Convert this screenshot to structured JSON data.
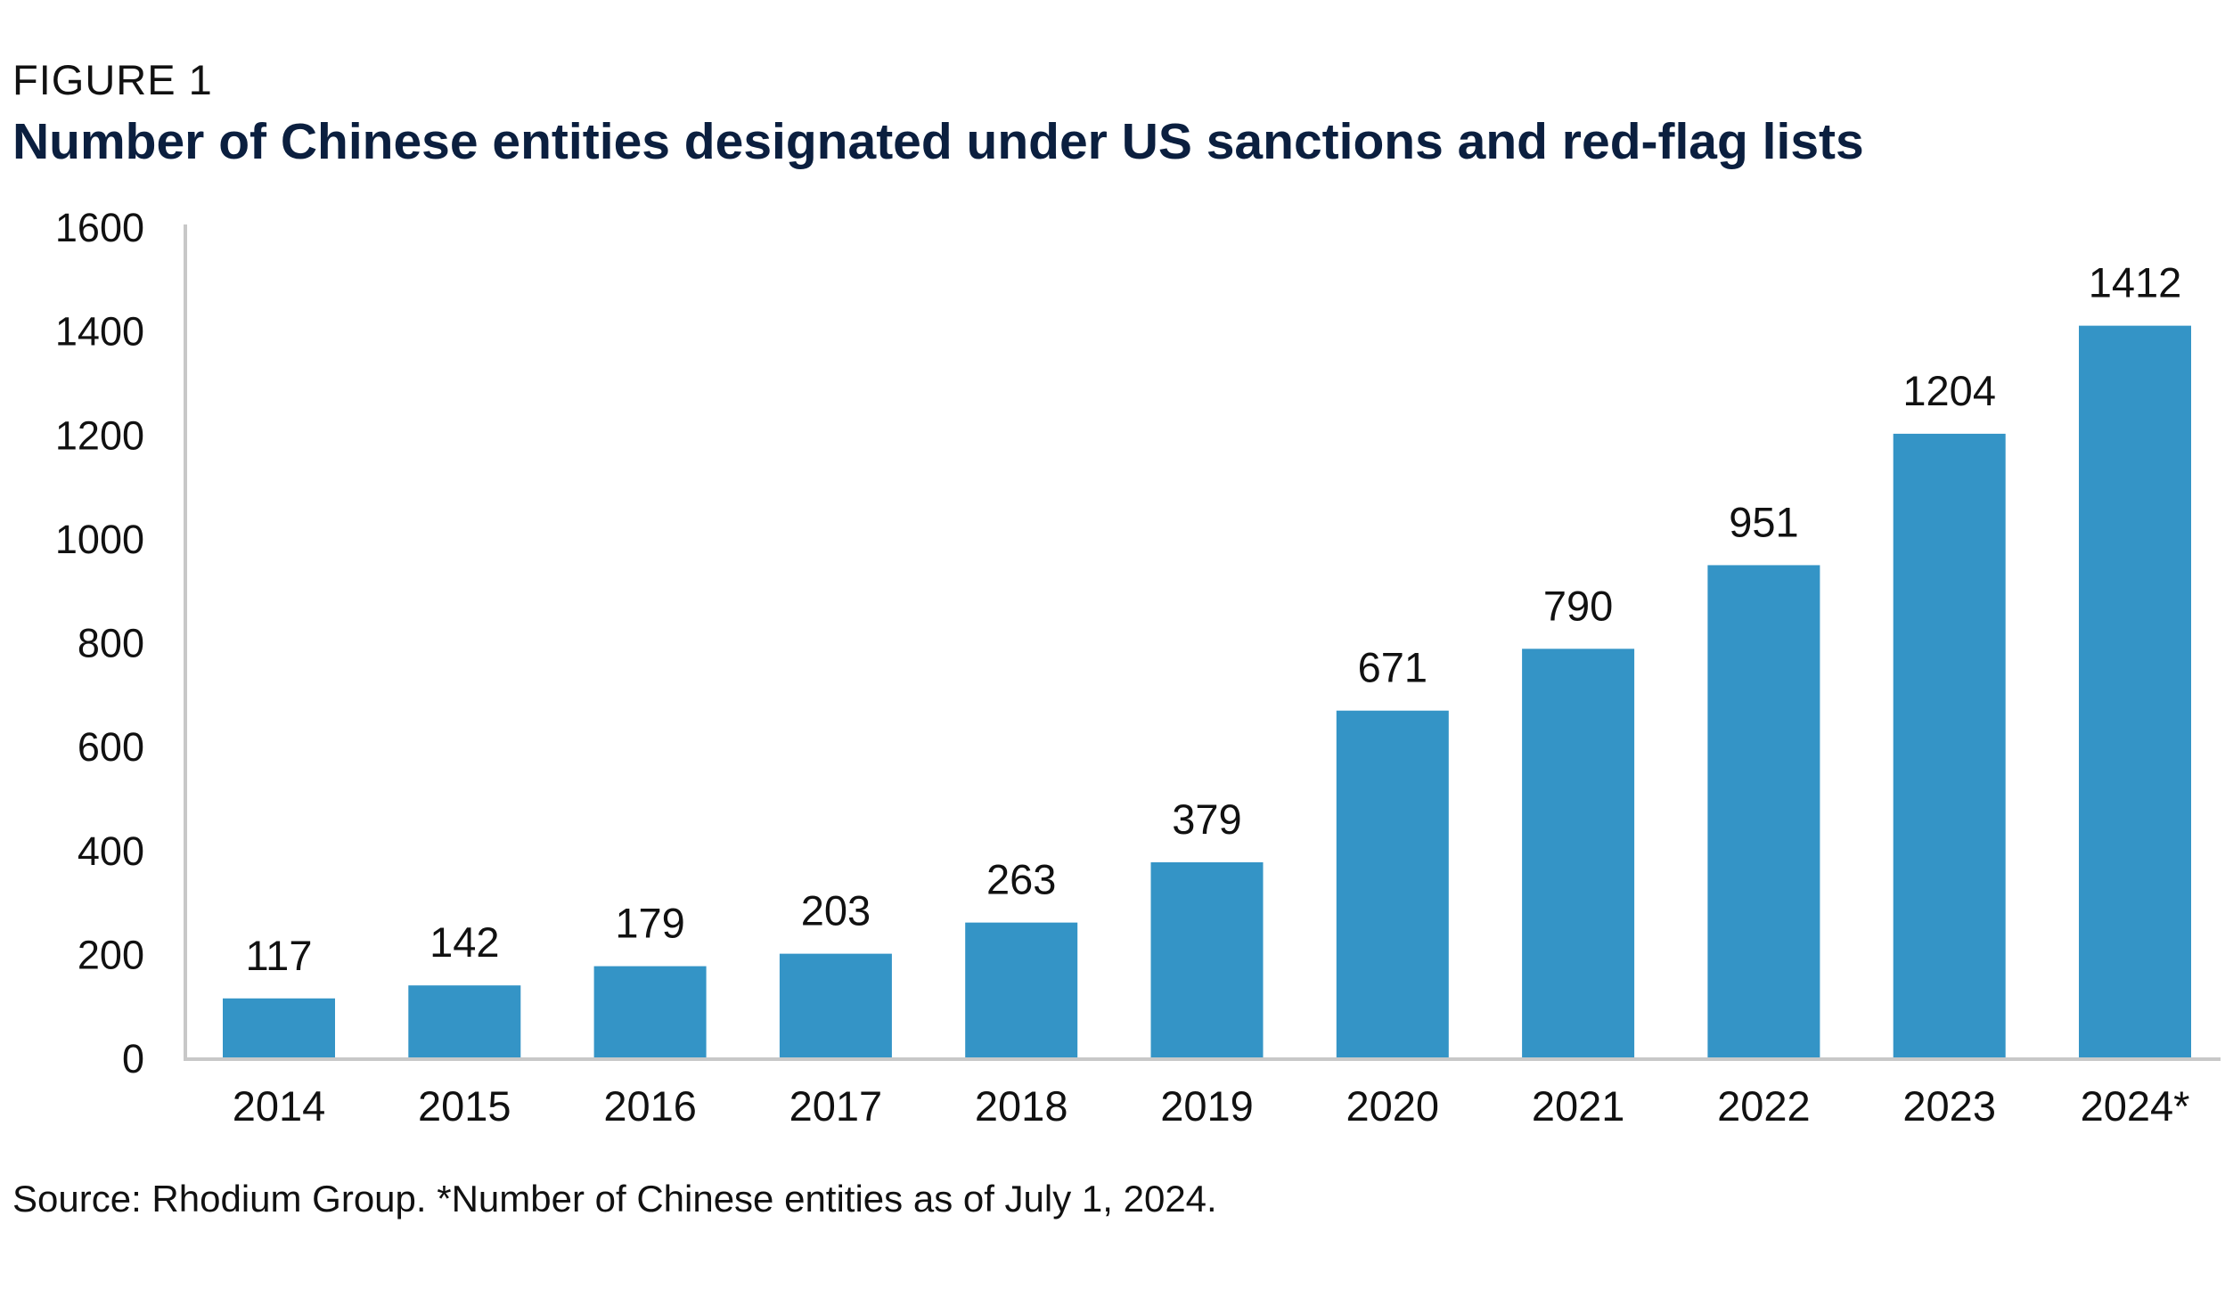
{
  "figure_label": "FIGURE 1",
  "title": "Number of Chinese entities designated under US sanctions and red-flag lists",
  "source": "Source: Rhodium Group. *Number of Chinese entities as of July 1, 2024.",
  "colors": {
    "bar": "#3494c6",
    "axis": "#c8c8c8",
    "text": "#111111",
    "title": "#0b1f3f"
  },
  "chart_data": {
    "type": "bar",
    "categories": [
      "2014",
      "2015",
      "2016",
      "2017",
      "2018",
      "2019",
      "2020",
      "2021",
      "2022",
      "2023",
      "2024*"
    ],
    "values": [
      117,
      142,
      179,
      203,
      263,
      379,
      671,
      790,
      951,
      1204,
      1412
    ],
    "data_labels": [
      "117",
      "142",
      "179",
      "203",
      "263",
      "379",
      "671",
      "790",
      "951",
      "1204",
      "1412"
    ],
    "title": "Number of Chinese entities designated under US sanctions and red-flag lists",
    "xlabel": "",
    "ylabel": "",
    "ylim": [
      0,
      1600
    ],
    "yticks": [
      0,
      200,
      400,
      600,
      800,
      1000,
      1200,
      1400,
      1600
    ],
    "ytick_labels": [
      "0",
      "200",
      "400",
      "600",
      "800",
      "1000",
      "1200",
      "1400",
      "1600"
    ],
    "grid": false,
    "legend": "none"
  }
}
